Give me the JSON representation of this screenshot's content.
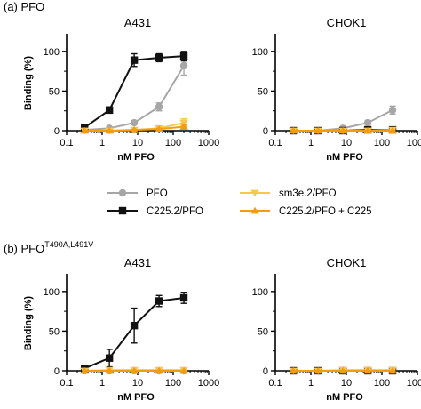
{
  "figure": {
    "panel_a_label": "(a)  PFO",
    "panel_b_prefix": "(b)  PFO",
    "panel_b_super": "T490A,L491V"
  },
  "styles": {
    "PFO": {
      "color": "#a6a6a6",
      "marker": "circle"
    },
    "C225.2/PFO": {
      "color": "#111111",
      "marker": "square"
    },
    "sm3e.2/PFO": {
      "color": "#f9c74f",
      "marker": "triangle-down"
    },
    "C225.2/PFO + C225": {
      "color": "#f39c12",
      "marker": "triangle-up"
    }
  },
  "legend": {
    "items": [
      "PFO",
      "C225.2/PFO",
      "sm3e.2/PFO",
      "C225.2/PFO + C225"
    ]
  },
  "chart_data": [
    {
      "type": "line",
      "title": "A431",
      "xlabel": "nM PFO",
      "ylabel": "Binding (%)",
      "xscale": "log",
      "xlim": [
        0.1,
        1000
      ],
      "ylim": [
        0,
        120
      ],
      "xticks": [
        "0.1",
        "1",
        "10",
        "100",
        "1000"
      ],
      "yticks": [
        "0",
        "50",
        "100"
      ],
      "series": [
        {
          "name": "PFO",
          "x": [
            0.32,
            1.6,
            8,
            40,
            200
          ],
          "y": [
            1,
            3,
            10,
            30,
            82
          ],
          "err": [
            0,
            0,
            2,
            5,
            12
          ]
        },
        {
          "name": "C225.2/PFO",
          "x": [
            0.32,
            1.6,
            8,
            40,
            200
          ],
          "y": [
            4,
            26,
            89,
            92,
            94
          ],
          "err": [
            1,
            4,
            8,
            5,
            6
          ]
        },
        {
          "name": "sm3e.2/PFO",
          "x": [
            0.32,
            1.6,
            8,
            40,
            200
          ],
          "y": [
            0,
            0,
            1,
            3,
            10
          ],
          "err": [
            0,
            0,
            1,
            2,
            5
          ]
        },
        {
          "name": "C225.2/PFO + C225",
          "x": [
            0.32,
            1.6,
            8,
            40,
            200
          ],
          "y": [
            0,
            0,
            1,
            2,
            5
          ],
          "err": [
            0,
            0,
            0,
            1,
            2
          ]
        }
      ]
    },
    {
      "type": "line",
      "title": "CHOK1",
      "xlabel": "nM PFO",
      "ylabel": "",
      "xscale": "log",
      "xlim": [
        0.1,
        1000
      ],
      "ylim": [
        0,
        120
      ],
      "xticks": [
        "0.1",
        "1",
        "10",
        "100",
        "1000"
      ],
      "yticks": [
        "0",
        "50",
        "100"
      ],
      "series": [
        {
          "name": "PFO",
          "x": [
            0.32,
            1.6,
            8,
            40,
            200
          ],
          "y": [
            0,
            0,
            3,
            10,
            26
          ],
          "err": [
            0,
            0,
            1,
            3,
            5
          ]
        },
        {
          "name": "C225.2/PFO",
          "x": [
            0.32,
            1.6,
            8,
            40,
            200
          ],
          "y": [
            0,
            0,
            0,
            1,
            1
          ],
          "err": [
            0,
            0,
            0,
            0,
            1
          ]
        },
        {
          "name": "sm3e.2/PFO",
          "x": [
            0.32,
            1.6,
            8,
            40,
            200
          ],
          "y": [
            0,
            0,
            0,
            0,
            1
          ],
          "err": [
            0,
            0,
            0,
            0,
            1
          ]
        },
        {
          "name": "C225.2/PFO + C225",
          "x": [
            0.32,
            1.6,
            8,
            40,
            200
          ],
          "y": [
            0,
            0,
            0,
            0,
            0
          ],
          "err": [
            0,
            0,
            0,
            0,
            0
          ]
        }
      ]
    },
    {
      "type": "line",
      "title": "A431",
      "xlabel": "nM PFO",
      "ylabel": "Binding (%)",
      "xscale": "log",
      "xlim": [
        0.1,
        1000
      ],
      "ylim": [
        0,
        120
      ],
      "xticks": [
        "0.1",
        "1",
        "10",
        "100",
        "1000"
      ],
      "yticks": [
        "0",
        "50",
        "100"
      ],
      "series": [
        {
          "name": "PFO",
          "x": [
            0.32,
            1.6,
            8,
            40,
            200
          ],
          "y": [
            0,
            0,
            0,
            0,
            0
          ],
          "err": [
            0,
            0,
            0,
            0,
            0
          ]
        },
        {
          "name": "C225.2/PFO",
          "x": [
            0.32,
            1.6,
            8,
            40,
            200
          ],
          "y": [
            3,
            16,
            57,
            88,
            92
          ],
          "err": [
            1,
            11,
            22,
            7,
            7
          ]
        },
        {
          "name": "sm3e.2/PFO",
          "x": [
            0.32,
            1.6,
            8,
            40,
            200
          ],
          "y": [
            0,
            1,
            1,
            1,
            1
          ],
          "err": [
            0,
            1,
            1,
            1,
            1
          ]
        },
        {
          "name": "C225.2/PFO + C225",
          "x": [
            0.32,
            1.6,
            8,
            40,
            200
          ],
          "y": [
            0,
            0,
            0,
            0,
            0
          ],
          "err": [
            0,
            0,
            0,
            0,
            0
          ]
        }
      ]
    },
    {
      "type": "line",
      "title": "CHOK1",
      "xlabel": "nM PFO",
      "ylabel": "",
      "xscale": "log",
      "xlim": [
        0.1,
        1000
      ],
      "ylim": [
        0,
        120
      ],
      "xticks": [
        "0.1",
        "1",
        "10",
        "100",
        "1000"
      ],
      "yticks": [
        "0",
        "50",
        "100"
      ],
      "series": [
        {
          "name": "PFO",
          "x": [
            0.32,
            1.6,
            8,
            40,
            200
          ],
          "y": [
            0,
            0,
            0,
            0,
            0
          ],
          "err": [
            0,
            0,
            0,
            0,
            0
          ]
        },
        {
          "name": "C225.2/PFO",
          "x": [
            0.32,
            1.6,
            8,
            40,
            200
          ],
          "y": [
            0,
            0,
            0,
            0,
            0
          ],
          "err": [
            0,
            0,
            0,
            0,
            0
          ]
        },
        {
          "name": "sm3e.2/PFO",
          "x": [
            0.32,
            1.6,
            8,
            40,
            200
          ],
          "y": [
            0,
            0,
            1,
            1,
            1
          ],
          "err": [
            0,
            0,
            1,
            1,
            1
          ]
        },
        {
          "name": "C225.2/PFO + C225",
          "x": [
            0.32,
            1.6,
            8,
            40,
            200
          ],
          "y": [
            0,
            0,
            0,
            0,
            0
          ],
          "err": [
            0,
            0,
            0,
            0,
            0
          ]
        }
      ]
    }
  ]
}
